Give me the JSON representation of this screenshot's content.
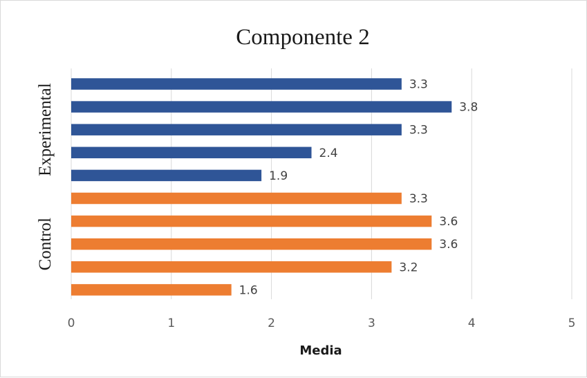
{
  "chart_data": {
    "type": "bar",
    "orientation": "horizontal",
    "title": "Componente 2",
    "xlabel": "Media",
    "ylabel": "",
    "xlim": [
      0,
      5
    ],
    "xticks": [
      0,
      1,
      2,
      3,
      4,
      5
    ],
    "grid": "vertical",
    "legend": "none",
    "groups": [
      {
        "label": "Experimental",
        "color": "#2f5597",
        "values": [
          3.3,
          3.8,
          3.3,
          2.4,
          1.9
        ]
      },
      {
        "label": "Control",
        "color": "#ed7d31",
        "values": [
          3.3,
          3.6,
          3.6,
          3.2,
          1.6
        ]
      }
    ]
  }
}
